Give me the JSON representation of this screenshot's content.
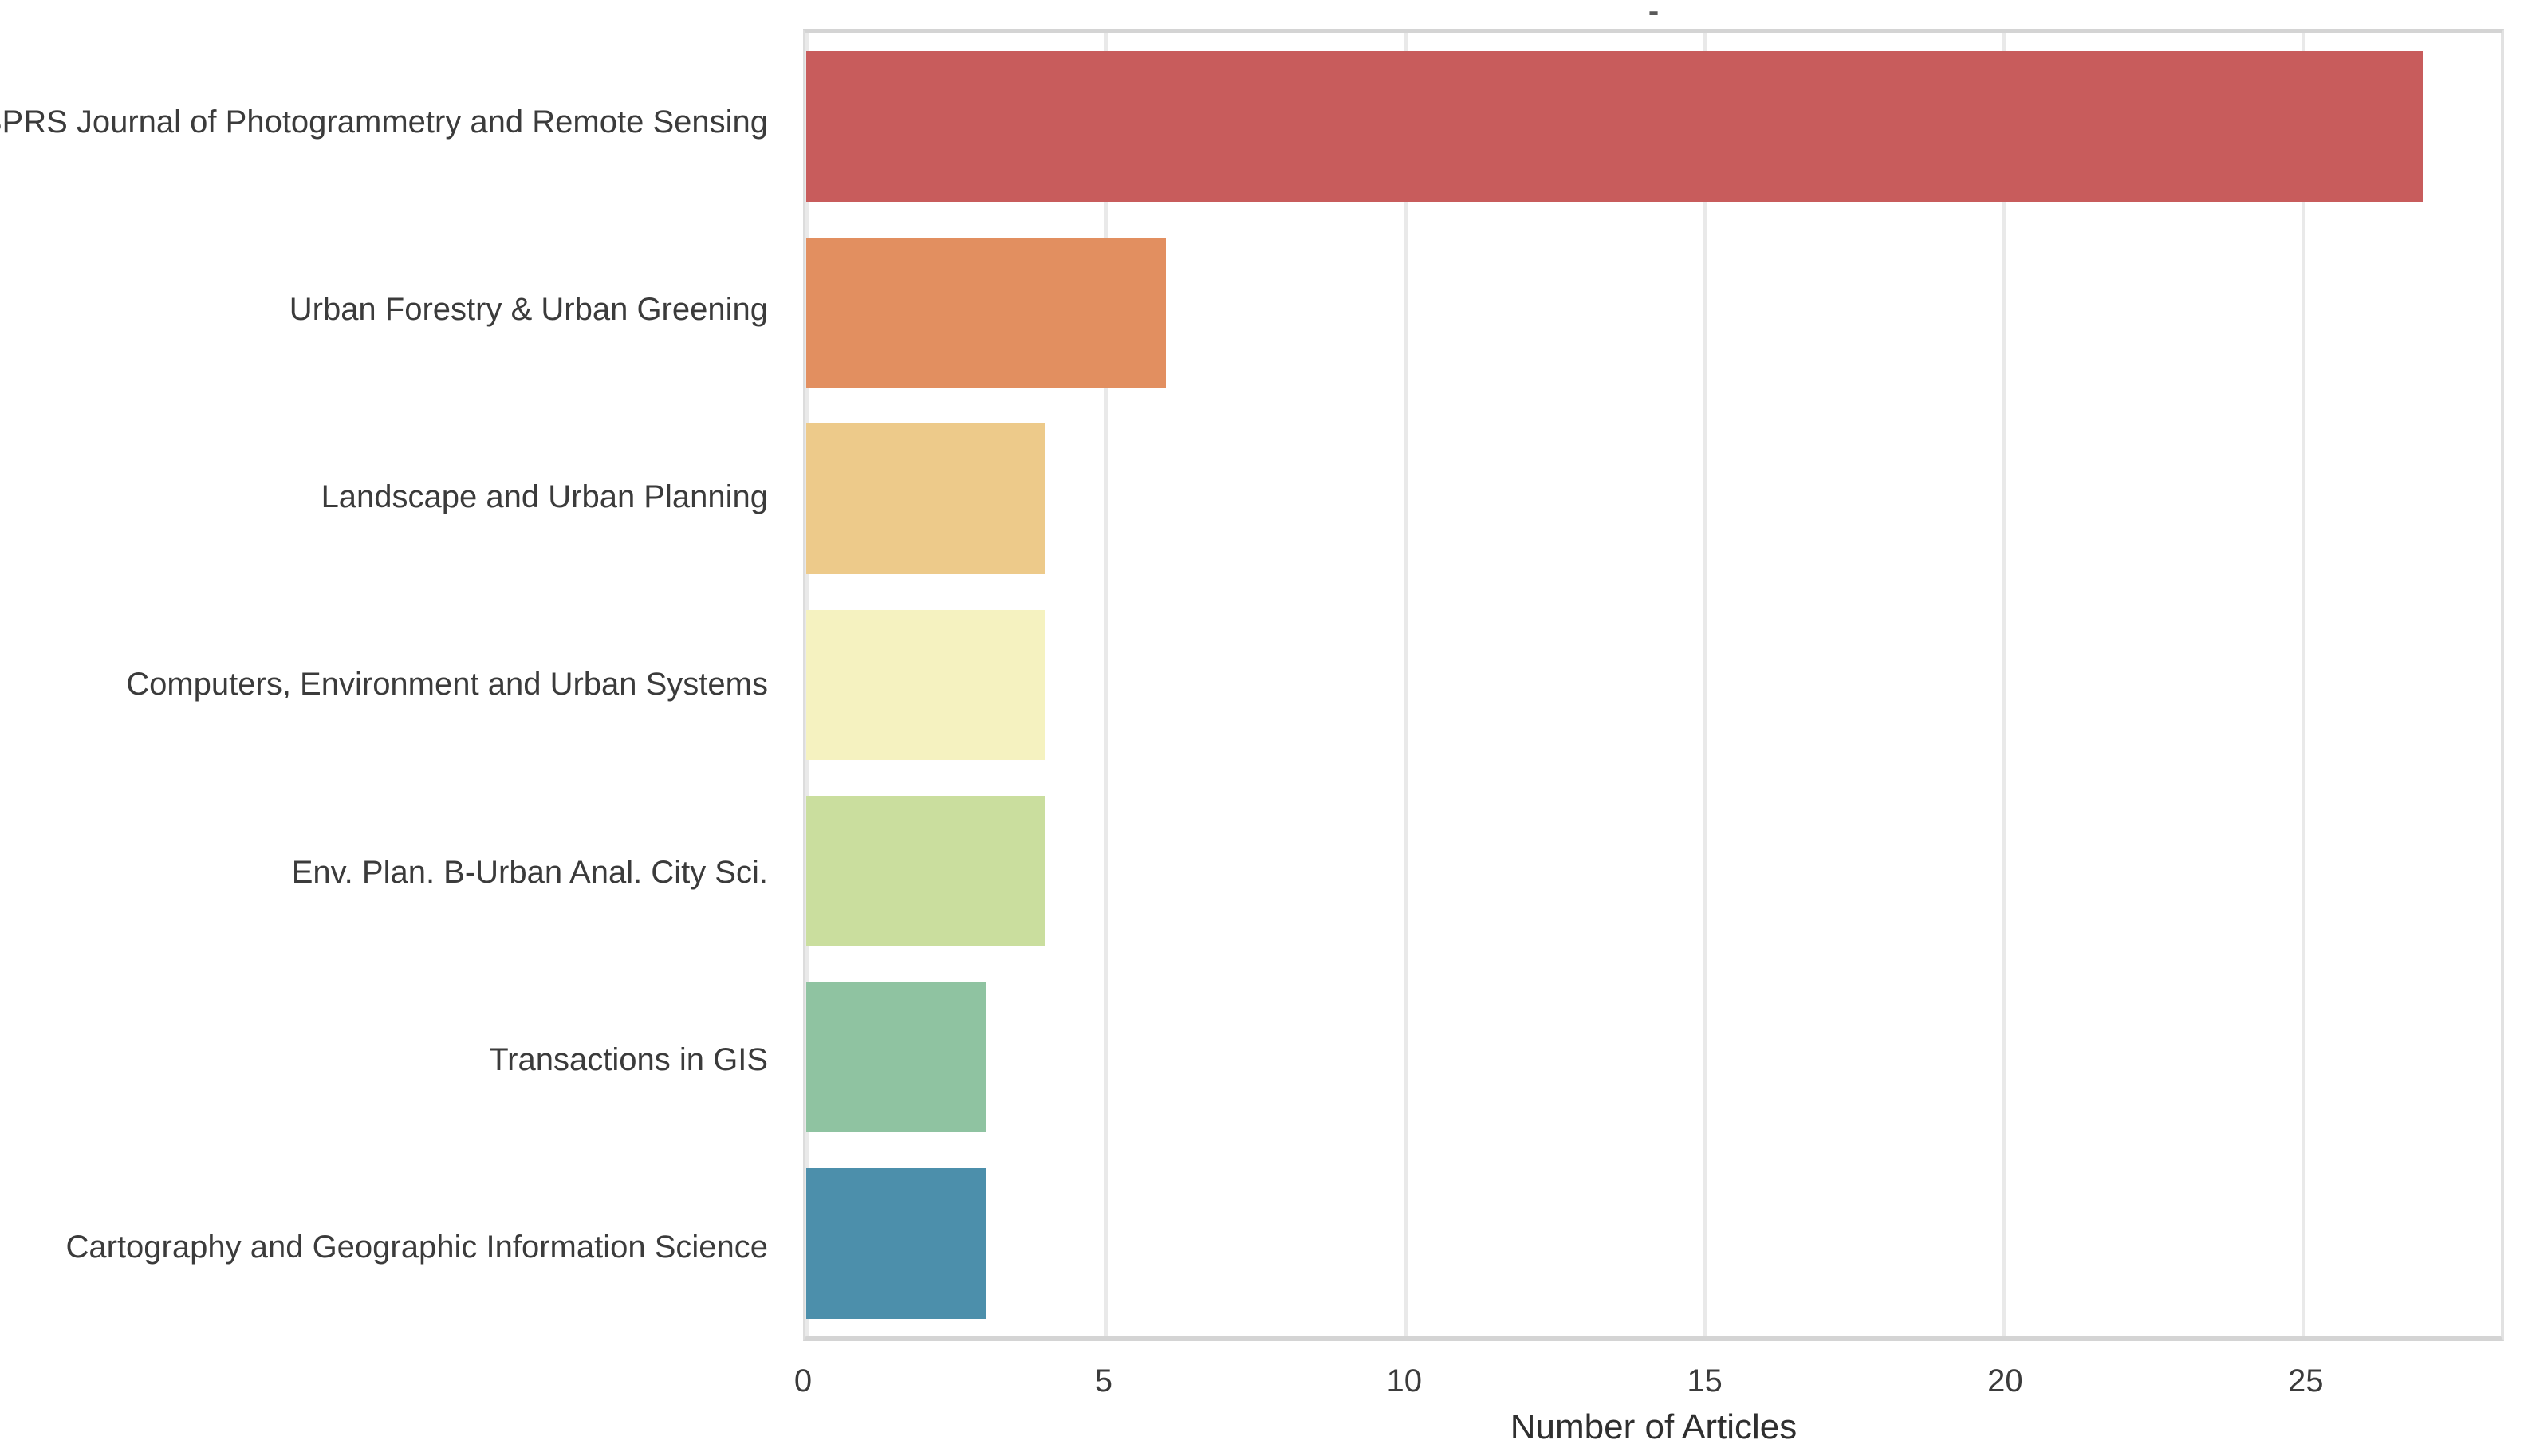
{
  "chart_data": {
    "type": "bar",
    "orientation": "horizontal",
    "title": "-",
    "xlabel": "Number of Articles",
    "categories": [
      "ISPRS Journal of Photogrammetry and Remote Sensing",
      "Urban Forestry & Urban Greening",
      "Landscape and Urban Planning",
      "Computers, Environment and Urban Systems",
      "Env. Plan. B-Urban Anal. City Sci.",
      "Transactions in GIS",
      "Cartography and Geographic Information Science"
    ],
    "values": [
      27,
      6,
      4,
      4,
      4,
      3,
      3
    ],
    "bar_colors": [
      "#c85c5c",
      "#e28f60",
      "#edca8a",
      "#f5f2c0",
      "#cade9e",
      "#8fc3a1",
      "#4c8fab"
    ],
    "x_ticks": [
      0,
      5,
      10,
      15,
      20,
      25
    ],
    "xlim": [
      0,
      28.3
    ],
    "grid": true,
    "legend": false
  },
  "colors": {
    "background": "#ffffff",
    "gridline": "#e9e9e9",
    "spine": "#d4d4d4",
    "text": "#3b3b3b"
  }
}
